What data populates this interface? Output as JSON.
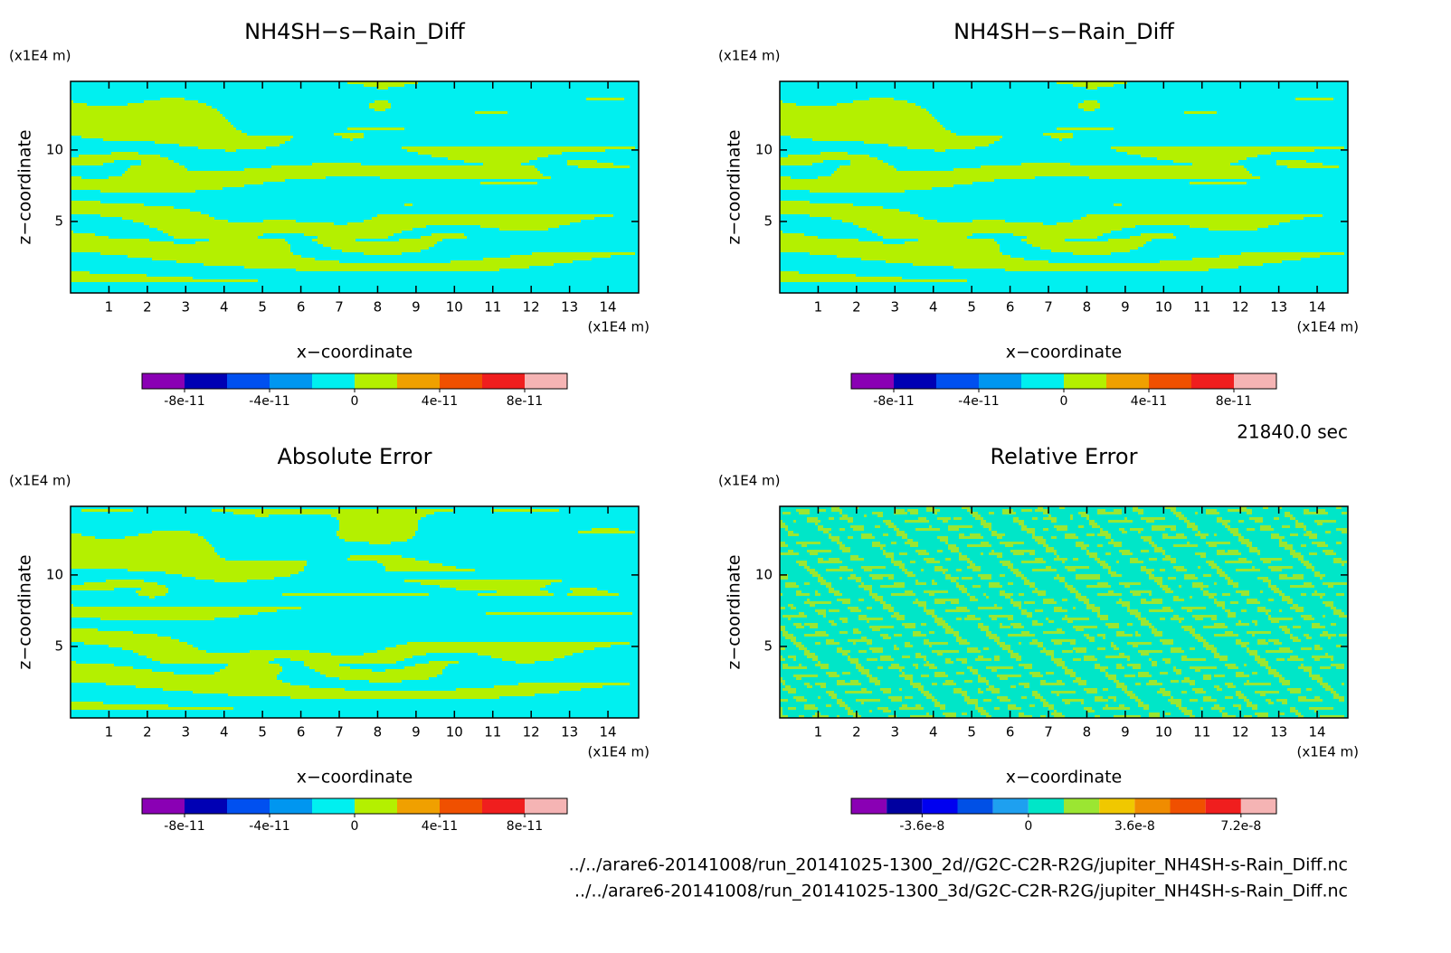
{
  "chart_data": [
    {
      "type": "contour",
      "title": "NH4SH−s−Rain_Diff",
      "xlabel": "x−coordinate",
      "ylabel": "z−coordinate",
      "x_unit": "(x1E4 m)",
      "y_unit": "(x1E4 m)",
      "xlim": [
        0,
        14.8
      ],
      "ylim": [
        0,
        14.8
      ],
      "xticks": [
        1,
        2,
        3,
        4,
        5,
        6,
        7,
        8,
        9,
        10,
        11,
        12,
        13,
        14
      ],
      "yticks": [
        5,
        10
      ],
      "clim": [
        -1e-10,
        1e-10
      ],
      "cbar_ticks": [
        -8e-11,
        -4e-11,
        0,
        4e-11,
        8e-11
      ],
      "colors": [
        "#8a00b4",
        "#0000b4",
        "#0050f0",
        "#0096f0",
        "#00f0f0",
        "#b4f000",
        "#f0a000",
        "#f05000",
        "#f01e1e",
        "#f5b4b4"
      ]
    },
    {
      "type": "contour",
      "title": "NH4SH−s−Rain_Diff",
      "xlabel": "x−coordinate",
      "ylabel": "z−coordinate",
      "x_unit": "(x1E4 m)",
      "y_unit": "(x1E4 m)",
      "xlim": [
        0,
        14.8
      ],
      "ylim": [
        0,
        14.8
      ],
      "xticks": [
        1,
        2,
        3,
        4,
        5,
        6,
        7,
        8,
        9,
        10,
        11,
        12,
        13,
        14
      ],
      "yticks": [
        5,
        10
      ],
      "clim": [
        -1e-10,
        1e-10
      ],
      "cbar_ticks": [
        -8e-11,
        -4e-11,
        0,
        4e-11,
        8e-11
      ],
      "colors": [
        "#8a00b4",
        "#0000b4",
        "#0050f0",
        "#0096f0",
        "#00f0f0",
        "#b4f000",
        "#f0a000",
        "#f05000",
        "#f01e1e",
        "#f5b4b4"
      ]
    },
    {
      "type": "contour",
      "title": "Absolute Error",
      "xlabel": "x−coordinate",
      "ylabel": "z−coordinate",
      "x_unit": "(x1E4 m)",
      "y_unit": "(x1E4 m)",
      "xlim": [
        0,
        14.8
      ],
      "ylim": [
        0,
        14.8
      ],
      "xticks": [
        1,
        2,
        3,
        4,
        5,
        6,
        7,
        8,
        9,
        10,
        11,
        12,
        13,
        14
      ],
      "yticks": [
        5,
        10
      ],
      "clim": [
        -1e-10,
        1e-10
      ],
      "cbar_ticks": [
        -8e-11,
        -4e-11,
        0,
        4e-11,
        8e-11
      ],
      "colors": [
        "#8a00b4",
        "#0000b4",
        "#0050f0",
        "#0096f0",
        "#00f0f0",
        "#b4f000",
        "#f0a000",
        "#f05000",
        "#f01e1e",
        "#f5b4b4"
      ]
    },
    {
      "type": "contour",
      "title": "Relative Error",
      "xlabel": "x−coordinate",
      "ylabel": "z−coordinate",
      "x_unit": "(x1E4 m)",
      "y_unit": "(x1E4 m)",
      "xlim": [
        0,
        14.8
      ],
      "ylim": [
        0,
        14.8
      ],
      "xticks": [
        1,
        2,
        3,
        4,
        5,
        6,
        7,
        8,
        9,
        10,
        11,
        12,
        13,
        14
      ],
      "yticks": [
        5,
        10
      ],
      "clim": [
        -6e-08,
        8.4e-08
      ],
      "cbar_ticks": [
        -3.6e-08,
        0,
        3.6e-08,
        7.2e-08
      ],
      "colors": [
        "#8a00b4",
        "#0000a0",
        "#0000f0",
        "#0050e6",
        "#1ea0f0",
        "#00e6c8",
        "#9be632",
        "#f0c800",
        "#f08c00",
        "#f05000",
        "#f01e1e",
        "#f5b4b4"
      ]
    }
  ],
  "time_label": "21840.0 sec",
  "files": [
    "../../arare6-20141008/run_20141025-1300_2d//G2C-C2R-R2G/jupiter_NH4SH-s-Rain_Diff.nc",
    "../../arare6-20141008/run_20141025-1300_3d/G2C-C2R-R2G/jupiter_NH4SH-s-Rain_Diff.nc"
  ]
}
